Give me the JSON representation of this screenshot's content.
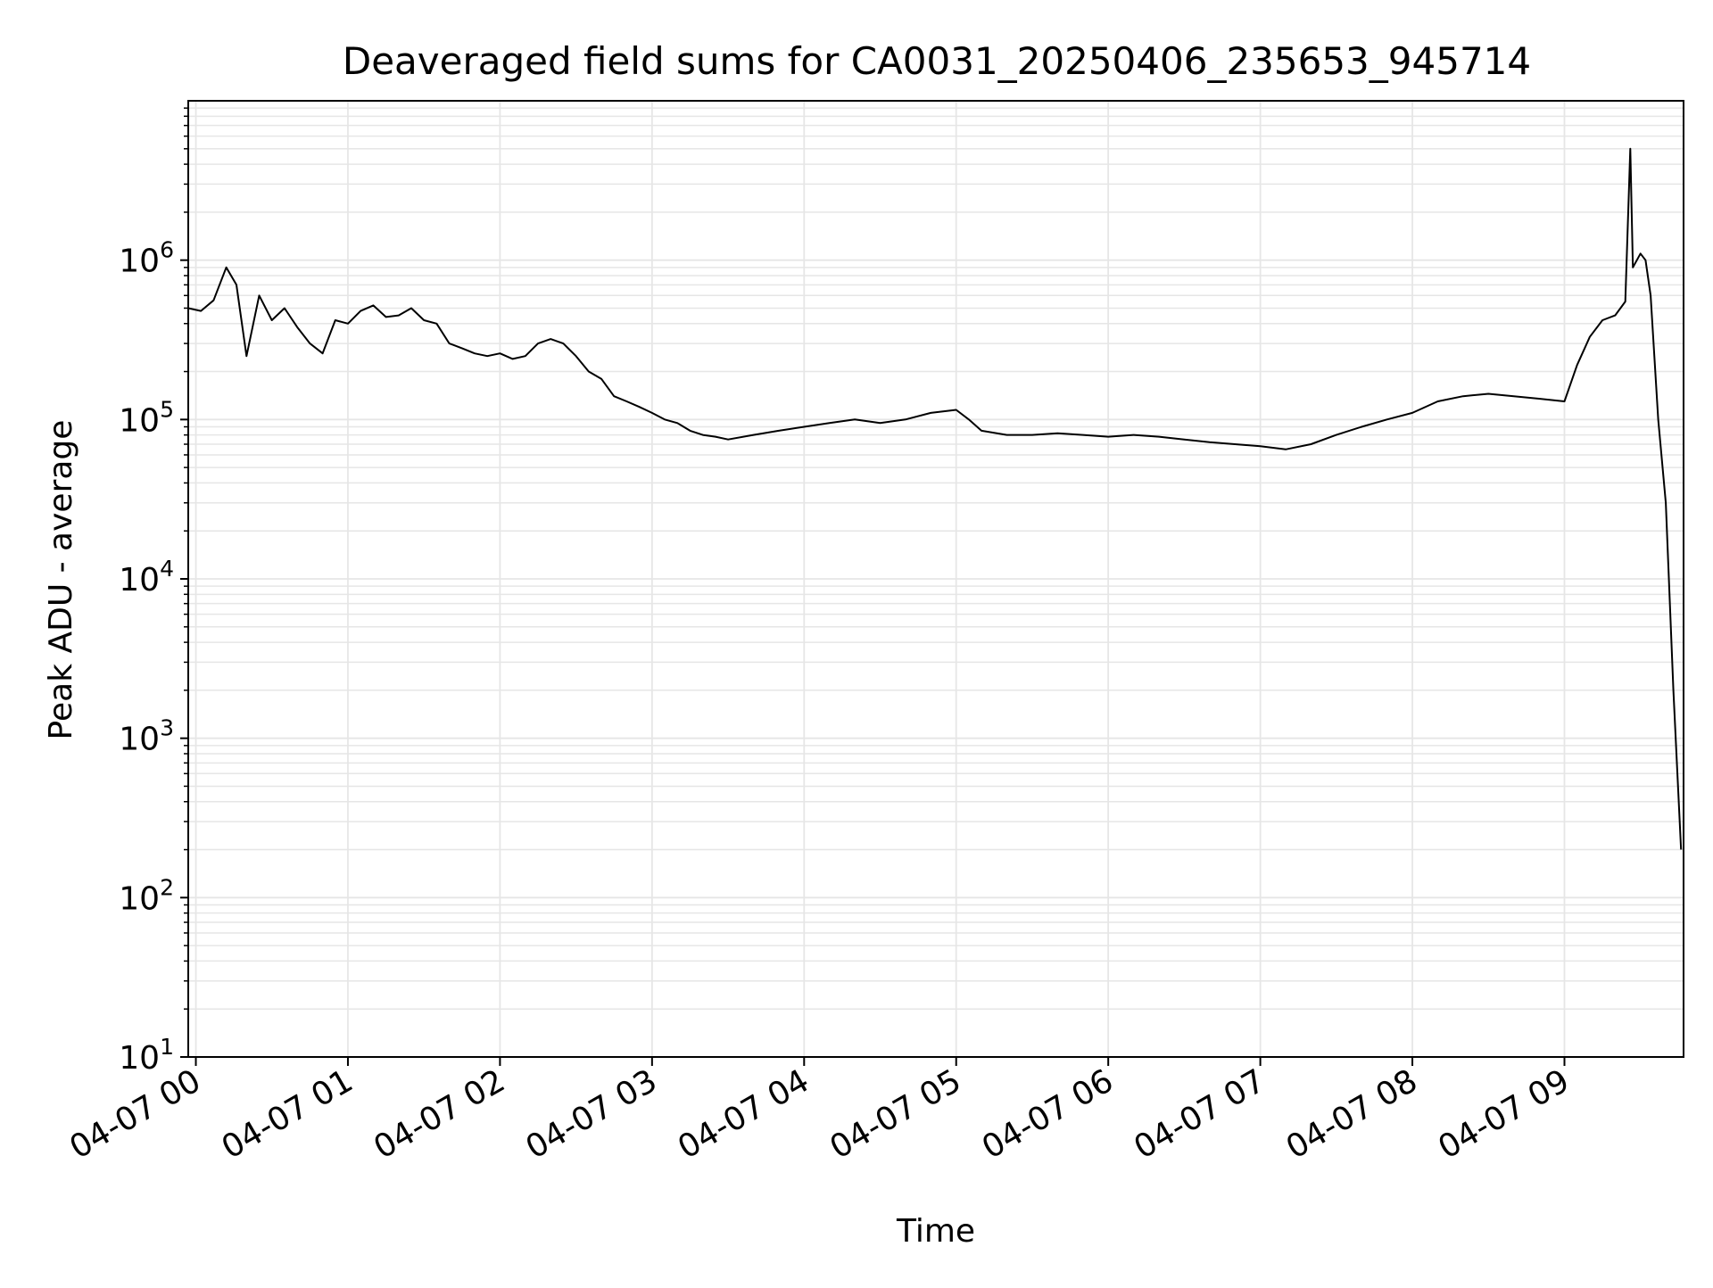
{
  "chart_data": {
    "type": "line",
    "title": "Deaveraged field sums for CA0031_20250406_235653_945714",
    "xlabel": "Time",
    "ylabel": "Peak ADU - average",
    "yscale": "log",
    "ylim": [
      10,
      10000000
    ],
    "xlim": [
      "2025-04-06 23:57",
      "2025-04-07 09:47"
    ],
    "grid": true,
    "minor_grid": true,
    "x_ticks": [
      {
        "t": "2025-04-07 00:00",
        "label": "04-07 00"
      },
      {
        "t": "2025-04-07 01:00",
        "label": "04-07 01"
      },
      {
        "t": "2025-04-07 02:00",
        "label": "04-07 02"
      },
      {
        "t": "2025-04-07 03:00",
        "label": "04-07 03"
      },
      {
        "t": "2025-04-07 04:00",
        "label": "04-07 04"
      },
      {
        "t": "2025-04-07 05:00",
        "label": "04-07 05"
      },
      {
        "t": "2025-04-07 06:00",
        "label": "04-07 06"
      },
      {
        "t": "2025-04-07 07:00",
        "label": "04-07 07"
      },
      {
        "t": "2025-04-07 08:00",
        "label": "04-07 08"
      },
      {
        "t": "2025-04-07 09:00",
        "label": "04-07 09"
      }
    ],
    "y_ticks": [
      {
        "value": 10,
        "base": "10",
        "exp": "1"
      },
      {
        "value": 100,
        "base": "10",
        "exp": "2"
      },
      {
        "value": 1000,
        "base": "10",
        "exp": "3"
      },
      {
        "value": 10000,
        "base": "10",
        "exp": "4"
      },
      {
        "value": 100000,
        "base": "10",
        "exp": "5"
      },
      {
        "value": 1000000,
        "base": "10",
        "exp": "6"
      }
    ],
    "line_color": "#000000",
    "grid_color": "#e6e6e6",
    "series": [
      {
        "points": [
          [
            "2025-04-06 23:57",
            500000
          ],
          [
            "2025-04-07 00:02",
            480000
          ],
          [
            "2025-04-07 00:07",
            560000
          ],
          [
            "2025-04-07 00:12",
            900000
          ],
          [
            "2025-04-07 00:16",
            700000
          ],
          [
            "2025-04-07 00:20",
            250000
          ],
          [
            "2025-04-07 00:25",
            600000
          ],
          [
            "2025-04-07 00:30",
            420000
          ],
          [
            "2025-04-07 00:35",
            500000
          ],
          [
            "2025-04-07 00:40",
            380000
          ],
          [
            "2025-04-07 00:45",
            300000
          ],
          [
            "2025-04-07 00:50",
            260000
          ],
          [
            "2025-04-07 00:55",
            420000
          ],
          [
            "2025-04-07 01:00",
            400000
          ],
          [
            "2025-04-07 01:05",
            480000
          ],
          [
            "2025-04-07 01:10",
            520000
          ],
          [
            "2025-04-07 01:15",
            440000
          ],
          [
            "2025-04-07 01:20",
            450000
          ],
          [
            "2025-04-07 01:25",
            500000
          ],
          [
            "2025-04-07 01:30",
            420000
          ],
          [
            "2025-04-07 01:35",
            400000
          ],
          [
            "2025-04-07 01:40",
            300000
          ],
          [
            "2025-04-07 01:45",
            280000
          ],
          [
            "2025-04-07 01:50",
            260000
          ],
          [
            "2025-04-07 01:55",
            250000
          ],
          [
            "2025-04-07 02:00",
            260000
          ],
          [
            "2025-04-07 02:05",
            240000
          ],
          [
            "2025-04-07 02:10",
            250000
          ],
          [
            "2025-04-07 02:15",
            300000
          ],
          [
            "2025-04-07 02:20",
            320000
          ],
          [
            "2025-04-07 02:25",
            300000
          ],
          [
            "2025-04-07 02:30",
            250000
          ],
          [
            "2025-04-07 02:35",
            200000
          ],
          [
            "2025-04-07 02:40",
            180000
          ],
          [
            "2025-04-07 02:45",
            140000
          ],
          [
            "2025-04-07 02:50",
            130000
          ],
          [
            "2025-04-07 02:55",
            120000
          ],
          [
            "2025-04-07 03:00",
            110000
          ],
          [
            "2025-04-07 03:05",
            100000
          ],
          [
            "2025-04-07 03:10",
            95000
          ],
          [
            "2025-04-07 03:15",
            85000
          ],
          [
            "2025-04-07 03:20",
            80000
          ],
          [
            "2025-04-07 03:25",
            78000
          ],
          [
            "2025-04-07 03:30",
            75000
          ],
          [
            "2025-04-07 03:40",
            80000
          ],
          [
            "2025-04-07 03:50",
            85000
          ],
          [
            "2025-04-07 04:00",
            90000
          ],
          [
            "2025-04-07 04:10",
            95000
          ],
          [
            "2025-04-07 04:20",
            100000
          ],
          [
            "2025-04-07 04:30",
            95000
          ],
          [
            "2025-04-07 04:40",
            100000
          ],
          [
            "2025-04-07 04:50",
            110000
          ],
          [
            "2025-04-07 05:00",
            115000
          ],
          [
            "2025-04-07 05:05",
            100000
          ],
          [
            "2025-04-07 05:10",
            85000
          ],
          [
            "2025-04-07 05:20",
            80000
          ],
          [
            "2025-04-07 05:30",
            80000
          ],
          [
            "2025-04-07 05:40",
            82000
          ],
          [
            "2025-04-07 05:50",
            80000
          ],
          [
            "2025-04-07 06:00",
            78000
          ],
          [
            "2025-04-07 06:10",
            80000
          ],
          [
            "2025-04-07 06:20",
            78000
          ],
          [
            "2025-04-07 06:30",
            75000
          ],
          [
            "2025-04-07 06:40",
            72000
          ],
          [
            "2025-04-07 06:50",
            70000
          ],
          [
            "2025-04-07 07:00",
            68000
          ],
          [
            "2025-04-07 07:10",
            65000
          ],
          [
            "2025-04-07 07:20",
            70000
          ],
          [
            "2025-04-07 07:30",
            80000
          ],
          [
            "2025-04-07 07:40",
            90000
          ],
          [
            "2025-04-07 07:50",
            100000
          ],
          [
            "2025-04-07 08:00",
            110000
          ],
          [
            "2025-04-07 08:10",
            130000
          ],
          [
            "2025-04-07 08:20",
            140000
          ],
          [
            "2025-04-07 08:30",
            145000
          ],
          [
            "2025-04-07 08:40",
            140000
          ],
          [
            "2025-04-07 08:50",
            135000
          ],
          [
            "2025-04-07 09:00",
            130000
          ],
          [
            "2025-04-07 09:05",
            220000
          ],
          [
            "2025-04-07 09:10",
            330000
          ],
          [
            "2025-04-07 09:15",
            420000
          ],
          [
            "2025-04-07 09:20",
            450000
          ],
          [
            "2025-04-07 09:24",
            550000
          ],
          [
            "2025-04-07 09:26",
            5000000
          ],
          [
            "2025-04-07 09:27",
            900000
          ],
          [
            "2025-04-07 09:30",
            1100000
          ],
          [
            "2025-04-07 09:32",
            1000000
          ],
          [
            "2025-04-07 09:34",
            600000
          ],
          [
            "2025-04-07 09:37",
            100000
          ],
          [
            "2025-04-07 09:40",
            30000
          ],
          [
            "2025-04-07 09:43",
            2000
          ],
          [
            "2025-04-07 09:46",
            200
          ]
        ]
      }
    ]
  }
}
